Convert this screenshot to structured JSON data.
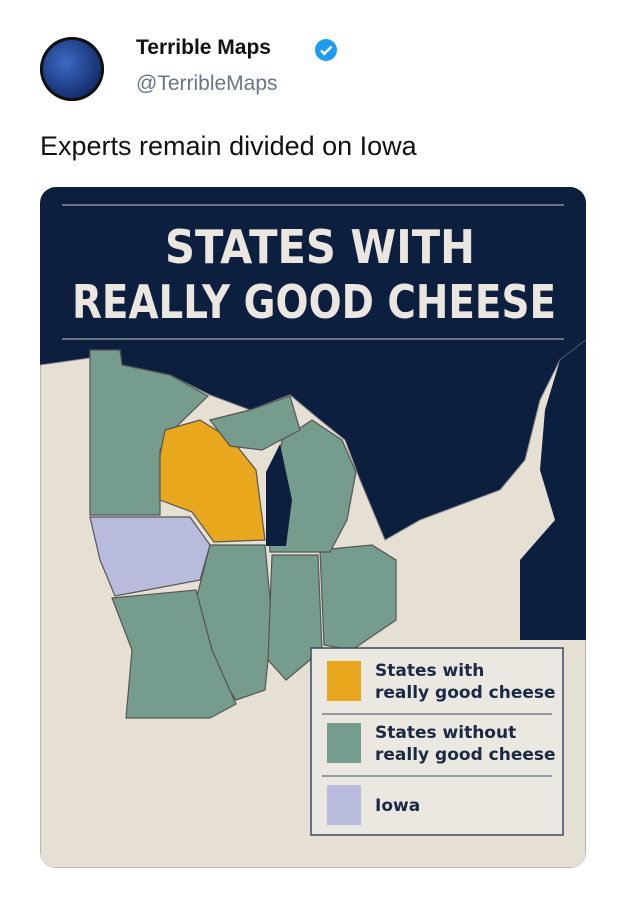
{
  "author": {
    "name": "Terrible Maps",
    "handle": "@TerribleMaps"
  },
  "tweet": {
    "text": "Experts remain divided on Iowa"
  },
  "map": {
    "title": [
      "STATES WITH",
      "REALLY GOOD CHEESE"
    ],
    "legend": [
      {
        "label": [
          "States with",
          "really good cheese"
        ],
        "color": "#e8a71c"
      },
      {
        "label": [
          "States without",
          "really good cheese"
        ],
        "color": "#759c8c"
      },
      {
        "label": [
          "Iowa"
        ],
        "color": "#b8bbdb"
      }
    ]
  }
}
